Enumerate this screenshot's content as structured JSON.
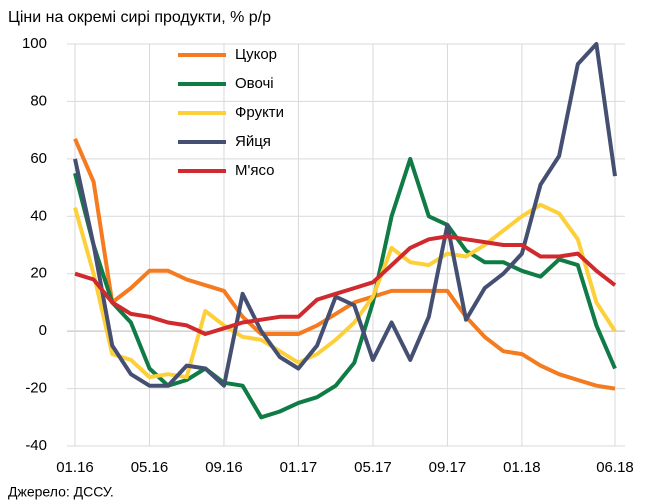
{
  "chart_data": {
    "type": "line",
    "title": "Ціни на окремі сирі продукти, % р/р",
    "source": "Джерело: ДССУ.",
    "categories": [
      "01.16",
      null,
      null,
      null,
      "05.16",
      null,
      null,
      null,
      "09.16",
      null,
      null,
      null,
      "01.17",
      null,
      null,
      null,
      "05.17",
      null,
      null,
      null,
      "09.17",
      null,
      null,
      null,
      "01.18",
      null,
      null,
      null,
      null,
      "06.18"
    ],
    "ylim": [
      -40,
      100
    ],
    "yticks": [
      -40,
      -20,
      0,
      20,
      40,
      60,
      80,
      100
    ],
    "grid": true,
    "legend": "top",
    "series": [
      {
        "name": "Цукор",
        "color": "#f47b20",
        "values": [
          67,
          52,
          10,
          15,
          21,
          21,
          18,
          16,
          14,
          5,
          -1,
          -1,
          -1,
          2,
          6,
          10,
          12,
          14,
          14,
          14,
          14,
          5,
          -2,
          -7,
          -8,
          -12,
          -15,
          -17,
          -19,
          -20
        ]
      },
      {
        "name": "Овочі",
        "color": "#0f7b45",
        "values": [
          55,
          30,
          10,
          3,
          -13,
          -19,
          -17,
          -13,
          -18,
          -19,
          -30,
          -28,
          -25,
          -23,
          -19,
          -11,
          10,
          40,
          60,
          40,
          37,
          28,
          24,
          24,
          21,
          19,
          25,
          23,
          2,
          -13
        ]
      },
      {
        "name": "Фрукти",
        "color": "#fdd03a",
        "values": [
          43,
          20,
          -8,
          -10,
          -16,
          -15,
          -16,
          7,
          2,
          -2,
          -3,
          -7,
          -11,
          -8,
          -3,
          3,
          12,
          29,
          24,
          23,
          27,
          26,
          30,
          35,
          40,
          44,
          41,
          32,
          10,
          0
        ]
      },
      {
        "name": "Яйця",
        "color": "#444f72",
        "values": [
          60,
          30,
          -5,
          -15,
          -19,
          -19,
          -12,
          -13,
          -19,
          13,
          0,
          -9,
          -13,
          -5,
          12,
          9,
          -10,
          3,
          -10,
          5,
          37,
          4,
          15,
          20,
          27,
          51,
          61,
          93,
          100,
          54
        ]
      },
      {
        "name": "М'ясо",
        "color": "#d02a2e",
        "values": [
          20,
          18,
          10,
          6,
          5,
          3,
          2,
          -1,
          1,
          3,
          4,
          5,
          5,
          11,
          13,
          15,
          17,
          23,
          29,
          32,
          33,
          32,
          31,
          30,
          30,
          26,
          26,
          27,
          21,
          16
        ]
      }
    ]
  }
}
